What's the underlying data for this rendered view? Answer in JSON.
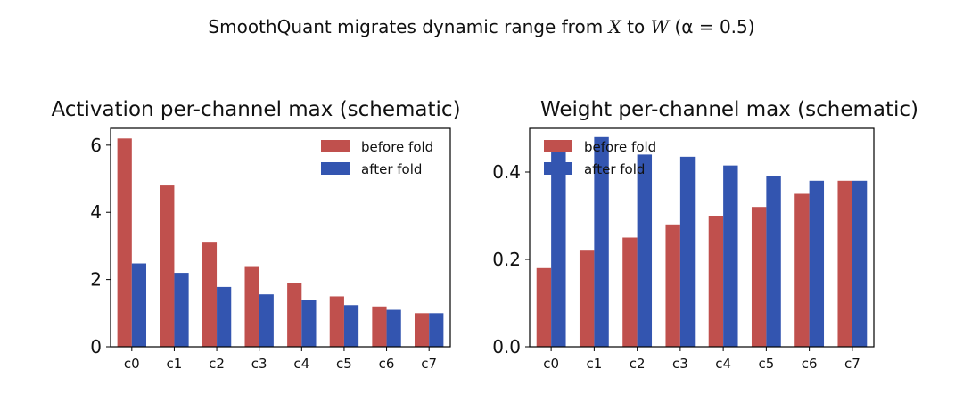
{
  "figure": {
    "suptitle_prefix": "SmoothQuant migrates dynamic range from ",
    "suptitle_x": "X",
    "suptitle_mid": " to ",
    "suptitle_w": "W",
    "suptitle_suffix": " (α = 0.5)"
  },
  "colors": {
    "before": "#c0504d",
    "after": "#3355b0",
    "axis": "#000000"
  },
  "chart_data": [
    {
      "type": "bar",
      "title": "Activation per-channel max (schematic)",
      "xlabel": "",
      "ylabel": "",
      "categories": [
        "c0",
        "c1",
        "c2",
        "c3",
        "c4",
        "c5",
        "c6",
        "c7"
      ],
      "series": [
        {
          "name": "before fold",
          "values": [
            6.2,
            4.8,
            3.1,
            2.4,
            1.9,
            1.5,
            1.2,
            1.0
          ]
        },
        {
          "name": "after fold",
          "values": [
            2.48,
            2.2,
            1.78,
            1.56,
            1.39,
            1.24,
            1.1,
            1.0
          ]
        }
      ],
      "ylim": [
        0,
        6.5
      ],
      "yticks": [
        0,
        2,
        4,
        6
      ],
      "ytick_labels": [
        "0",
        "2",
        "4",
        "6"
      ],
      "legend": "top-right",
      "grid": false
    },
    {
      "type": "bar",
      "title": "Weight per-channel max (schematic)",
      "xlabel": "",
      "ylabel": "",
      "categories": [
        "c0",
        "c1",
        "c2",
        "c3",
        "c4",
        "c5",
        "c6",
        "c7"
      ],
      "series": [
        {
          "name": "before fold",
          "values": [
            0.18,
            0.22,
            0.25,
            0.28,
            0.3,
            0.32,
            0.35,
            0.38
          ]
        },
        {
          "name": "after fold",
          "values": [
            0.45,
            0.48,
            0.44,
            0.435,
            0.415,
            0.39,
            0.38,
            0.38
          ]
        }
      ],
      "ylim": [
        0,
        0.5
      ],
      "yticks": [
        0,
        0.2,
        0.4
      ],
      "ytick_labels": [
        "0.0",
        "0.2",
        "0.4"
      ],
      "legend": "top-left",
      "grid": false
    }
  ]
}
